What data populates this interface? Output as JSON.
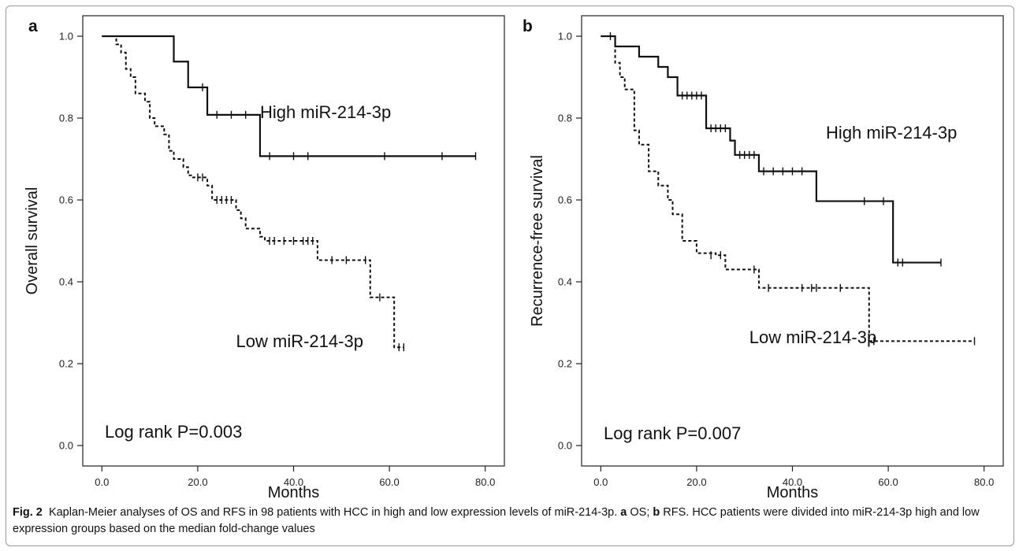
{
  "figure": {
    "caption_label": "Fig. 2",
    "caption_parts": [
      {
        "text": "Kaplan-Meier analyses of OS and RFS in 98 patients with HCC in high and low expression levels of miR-214-3p. ",
        "bold": false
      },
      {
        "text": "a",
        "bold": true
      },
      {
        "text": " OS; ",
        "bold": false
      },
      {
        "text": "b",
        "bold": true
      },
      {
        "text": " RFS. HCC patients were divided into miR-214-3p high and low expression groups based on the median fold-change values",
        "bold": false
      }
    ]
  },
  "chart_data": [
    {
      "type": "line",
      "panel": "a",
      "xlabel": "Months",
      "ylabel": "Overall survival",
      "xlim": [
        -4,
        84
      ],
      "ylim": [
        -0.05,
        1.05
      ],
      "xticks": [
        0,
        20,
        40,
        60,
        80
      ],
      "xtick_labels": [
        "0.0",
        "20.0",
        "40.0",
        "60.0",
        "80.0"
      ],
      "yticks": [
        0,
        0.2,
        0.4,
        0.6,
        0.8,
        1.0
      ],
      "ytick_labels": [
        "0.0",
        "0.2",
        "0.4",
        "0.6",
        "0.8",
        "1.0"
      ],
      "annotation": "Log rank P=0.003",
      "series": [
        {
          "name": "High miR-214-3p",
          "style": "solid",
          "label_at": [
            33,
            0.8
          ],
          "steps": [
            [
              0,
              1.0
            ],
            [
              15,
              0.938
            ],
            [
              18,
              0.875
            ],
            [
              22,
              0.808
            ],
            [
              33,
              0.707
            ],
            [
              78,
              0.707
            ]
          ],
          "censored": [
            [
              21,
              0.875
            ],
            [
              24,
              0.808
            ],
            [
              27,
              0.808
            ],
            [
              30,
              0.808
            ],
            [
              35,
              0.707
            ],
            [
              40,
              0.707
            ],
            [
              43,
              0.707
            ],
            [
              59,
              0.707
            ],
            [
              71,
              0.707
            ],
            [
              78,
              0.707
            ]
          ]
        },
        {
          "name": "Low miR-214-3p",
          "style": "dashed",
          "label_at": [
            28,
            0.24
          ],
          "steps": [
            [
              0,
              1.0
            ],
            [
              3,
              0.98
            ],
            [
              4,
              0.96
            ],
            [
              5,
              0.92
            ],
            [
              6,
              0.9
            ],
            [
              7,
              0.86
            ],
            [
              9,
              0.84
            ],
            [
              10,
              0.8
            ],
            [
              11,
              0.78
            ],
            [
              13,
              0.76
            ],
            [
              14,
              0.72
            ],
            [
              15,
              0.7
            ],
            [
              17,
              0.68
            ],
            [
              18,
              0.66
            ],
            [
              19,
              0.655
            ],
            [
              22,
              0.635
            ],
            [
              23,
              0.6
            ],
            [
              28,
              0.575
            ],
            [
              29,
              0.555
            ],
            [
              30,
              0.53
            ],
            [
              33,
              0.51
            ],
            [
              34,
              0.5
            ],
            [
              45,
              0.453
            ],
            [
              56,
              0.362
            ],
            [
              61,
              0.24
            ],
            [
              63,
              0.24
            ]
          ],
          "censored": [
            [
              20,
              0.655
            ],
            [
              21,
              0.655
            ],
            [
              24,
              0.6
            ],
            [
              25,
              0.6
            ],
            [
              26,
              0.6
            ],
            [
              27,
              0.6
            ],
            [
              35,
              0.5
            ],
            [
              36,
              0.5
            ],
            [
              38,
              0.5
            ],
            [
              40,
              0.5
            ],
            [
              42,
              0.5
            ],
            [
              43,
              0.5
            ],
            [
              44,
              0.5
            ],
            [
              48,
              0.453
            ],
            [
              51,
              0.453
            ],
            [
              55,
              0.453
            ],
            [
              58,
              0.362
            ],
            [
              62,
              0.24
            ],
            [
              63,
              0.24
            ]
          ]
        }
      ]
    },
    {
      "type": "line",
      "panel": "b",
      "xlabel": "Months",
      "ylabel": "Recurrence-free survival",
      "xlim": [
        -4,
        84
      ],
      "ylim": [
        -0.05,
        1.05
      ],
      "xticks": [
        0,
        20,
        40,
        60,
        80
      ],
      "xtick_labels": [
        "0.0",
        "20.0",
        "40.0",
        "60.0",
        "80.0"
      ],
      "yticks": [
        0,
        0.2,
        0.4,
        0.6,
        0.8,
        1.0
      ],
      "ytick_labels": [
        "0.0",
        "0.2",
        "0.4",
        "0.6",
        "0.8",
        "1.0"
      ],
      "annotation": "Log rank P=0.007",
      "series": [
        {
          "name": "High miR-214-3p",
          "style": "solid",
          "label_at": [
            47,
            0.75
          ],
          "steps": [
            [
              0,
              1.0
            ],
            [
              3,
              0.975
            ],
            [
              8,
              0.95
            ],
            [
              12,
              0.925
            ],
            [
              14,
              0.9
            ],
            [
              16,
              0.855
            ],
            [
              22,
              0.775
            ],
            [
              27,
              0.745
            ],
            [
              28,
              0.71
            ],
            [
              33,
              0.67
            ],
            [
              45,
              0.597
            ],
            [
              61,
              0.447
            ],
            [
              71,
              0.447
            ]
          ],
          "censored": [
            [
              2,
              1.0
            ],
            [
              17,
              0.855
            ],
            [
              18,
              0.855
            ],
            [
              19,
              0.855
            ],
            [
              20,
              0.855
            ],
            [
              21,
              0.855
            ],
            [
              23,
              0.775
            ],
            [
              24,
              0.775
            ],
            [
              25,
              0.775
            ],
            [
              26,
              0.775
            ],
            [
              29,
              0.71
            ],
            [
              30,
              0.71
            ],
            [
              31,
              0.71
            ],
            [
              32,
              0.71
            ],
            [
              34,
              0.67
            ],
            [
              36,
              0.67
            ],
            [
              38,
              0.67
            ],
            [
              40,
              0.67
            ],
            [
              42,
              0.67
            ],
            [
              55,
              0.597
            ],
            [
              59,
              0.597
            ],
            [
              62,
              0.447
            ],
            [
              63,
              0.447
            ],
            [
              71,
              0.447
            ]
          ]
        },
        {
          "name": "Low miR-214-3p",
          "style": "dashed",
          "label_at": [
            31,
            0.25
          ],
          "steps": [
            [
              0,
              1.0
            ],
            [
              3,
              0.935
            ],
            [
              4,
              0.9
            ],
            [
              5,
              0.87
            ],
            [
              7,
              0.77
            ],
            [
              8,
              0.735
            ],
            [
              10,
              0.67
            ],
            [
              12,
              0.635
            ],
            [
              14,
              0.6
            ],
            [
              15,
              0.565
            ],
            [
              17,
              0.5
            ],
            [
              20,
              0.47
            ],
            [
              24,
              0.465
            ],
            [
              26,
              0.43
            ],
            [
              31,
              0.43
            ],
            [
              33,
              0.385
            ],
            [
              56,
              0.255
            ],
            [
              78,
              0.255
            ]
          ],
          "censored": [
            [
              23,
              0.465
            ],
            [
              25,
              0.465
            ],
            [
              32,
              0.43
            ],
            [
              35,
              0.385
            ],
            [
              42,
              0.385
            ],
            [
              44,
              0.385
            ],
            [
              45,
              0.385
            ],
            [
              50,
              0.385
            ],
            [
              57,
              0.255
            ],
            [
              78,
              0.255
            ]
          ]
        }
      ]
    }
  ]
}
